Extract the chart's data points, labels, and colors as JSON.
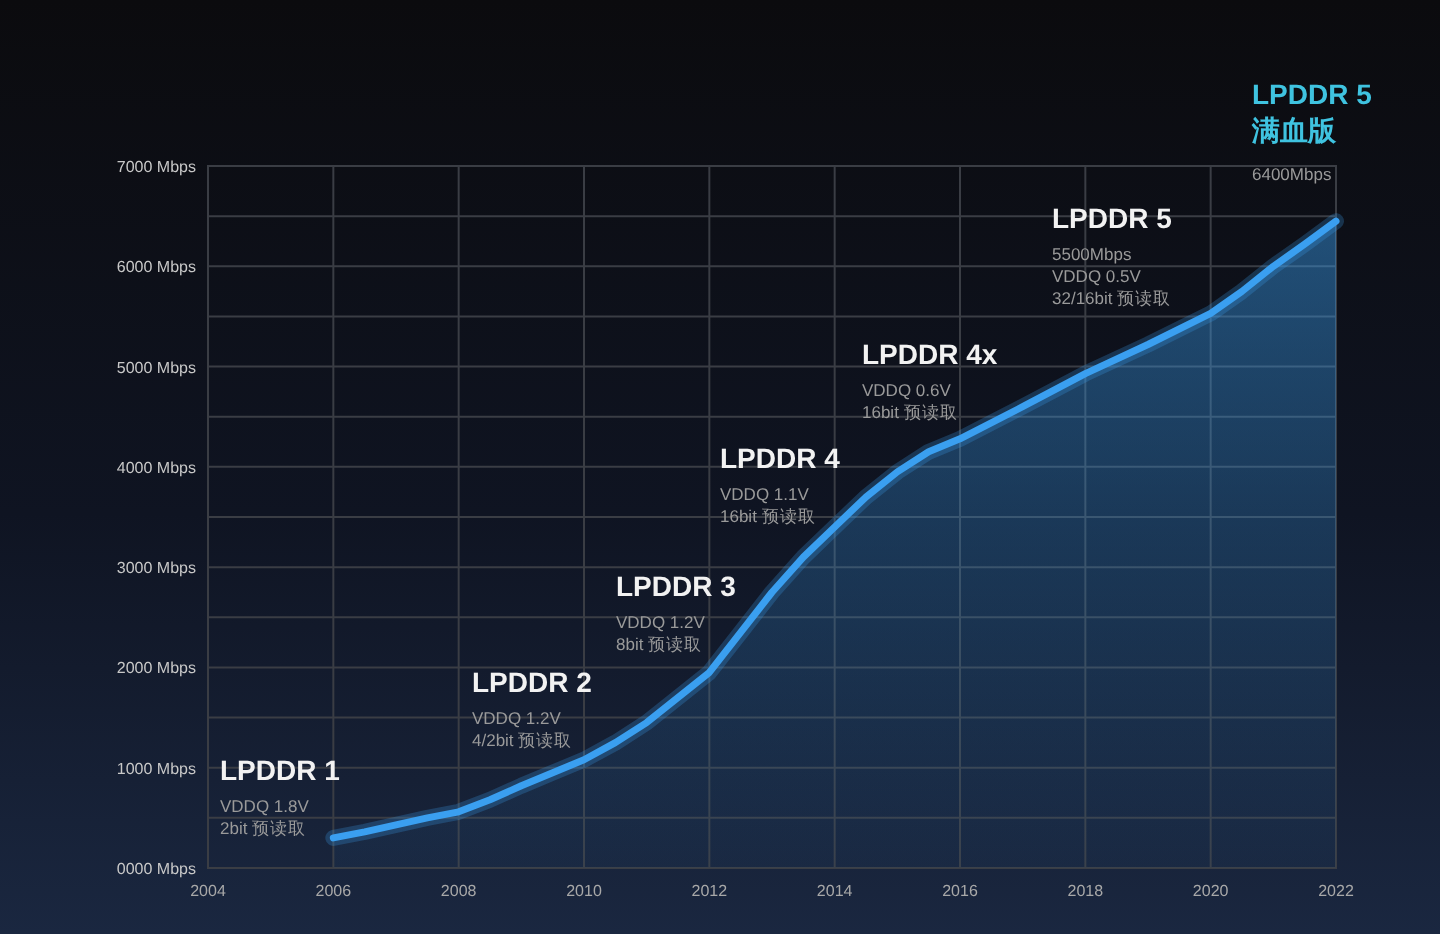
{
  "chart_data": {
    "type": "area",
    "x": [
      2006,
      2006.5,
      2007,
      2007.5,
      2008,
      2008.5,
      2009,
      2009.5,
      2010,
      2010.5,
      2011,
      2011.5,
      2012,
      2012.5,
      2013,
      2013.5,
      2014,
      2014.5,
      2015,
      2015.5,
      2016,
      2017,
      2018,
      2019,
      2020,
      2020.5,
      2021,
      2021.5,
      2022
    ],
    "series": [
      {
        "color": "#3a9ff0",
        "values": [
          300,
          360,
          430,
          500,
          560,
          680,
          820,
          950,
          1080,
          1250,
          1450,
          1700,
          1950,
          2350,
          2750,
          3100,
          3400,
          3700,
          3950,
          4150,
          4280,
          4600,
          4930,
          5220,
          5530,
          5750,
          6000,
          6220,
          6450
        ]
      }
    ],
    "xlim": [
      2004,
      2022
    ],
    "xticks": [
      2004,
      2006,
      2008,
      2010,
      2012,
      2014,
      2016,
      2018,
      2020,
      2022
    ],
    "ylim": [
      0,
      7000
    ],
    "yticks": [
      {
        "value": 0,
        "label": "0000 Mbps"
      },
      {
        "value": 500,
        "label": null
      },
      {
        "value": 1000,
        "label": "1000 Mbps"
      },
      {
        "value": 1500,
        "label": null
      },
      {
        "value": 2000,
        "label": "2000 Mbps"
      },
      {
        "value": 2500,
        "label": null
      },
      {
        "value": 3000,
        "label": "3000 Mbps"
      },
      {
        "value": 3500,
        "label": null
      },
      {
        "value": 4000,
        "label": "4000 Mbps"
      },
      {
        "value": 4500,
        "label": null
      },
      {
        "value": 5000,
        "label": "5000 Mbps"
      },
      {
        "value": 5500,
        "label": null
      },
      {
        "value": 6000,
        "label": "6000 Mbps"
      },
      {
        "value": 6500,
        "label": null
      },
      {
        "value": 7000,
        "label": "7000 Mbps"
      }
    ],
    "grid": true,
    "annotations": [
      "LPDDR 1\nVDDQ 1.8V\n2bit 预读取",
      "LPDDR 2\nVDDQ 1.2V\n4/2bit 预读取",
      "LPDDR 3\nVDDQ 1.2V\n8bit 预读取",
      "LPDDR 4\nVDDQ 1.1V\n16bit 预读取",
      "LPDDR 4x\nVDDQ 0.6V\n16bit 预读取",
      "LPDDR 5\n5500Mbps\nVDDQ 0.5V\n32/16bit 预读取",
      "LPDDR 5\n满血版\n6400Mbps"
    ]
  }
}
